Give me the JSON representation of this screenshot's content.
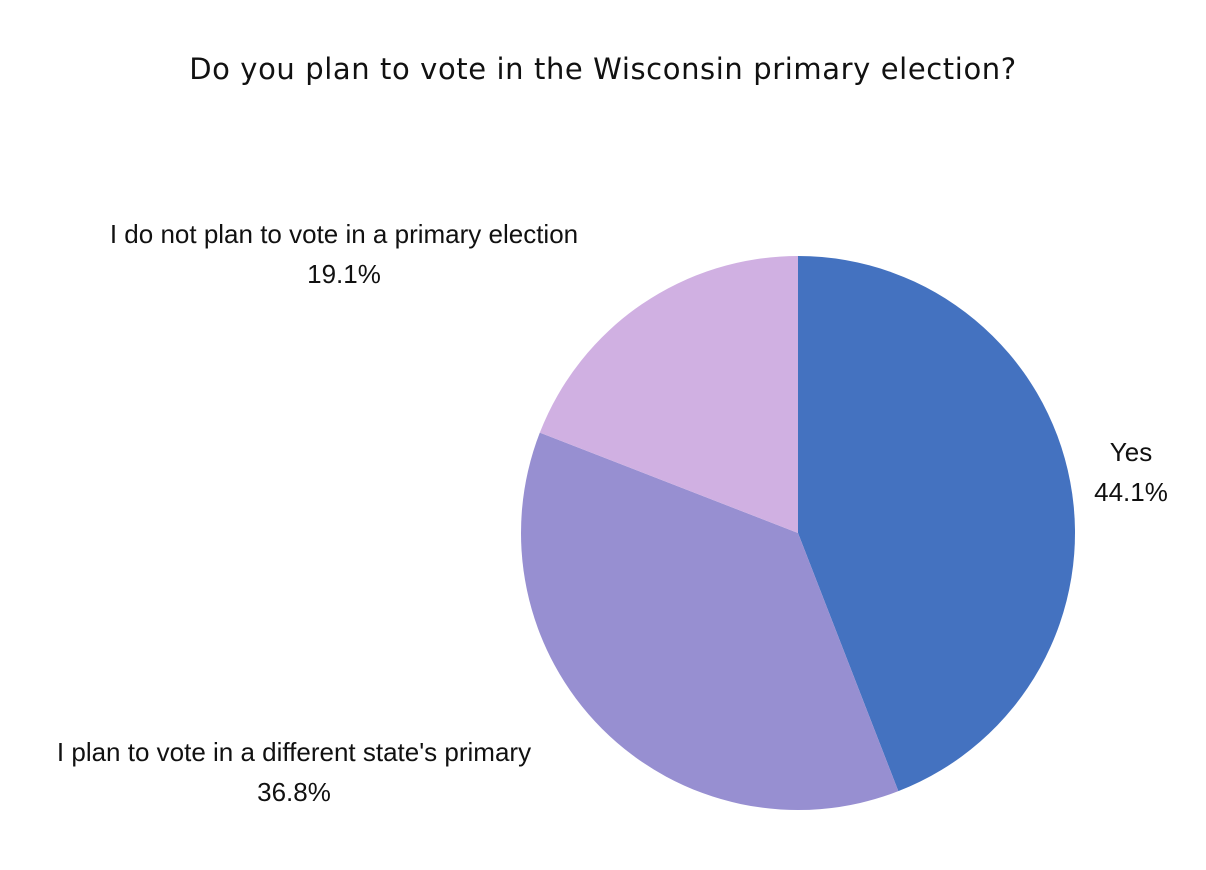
{
  "chart_data": {
    "type": "pie",
    "title": "Do you plan to vote in the Wisconsin primary election?",
    "slices": [
      {
        "label": "Yes",
        "value": 44.1,
        "value_label": "44.1%",
        "color": "#4472c0"
      },
      {
        "label": "I plan to vote in a different state's primary",
        "value": 36.8,
        "value_label": "36.8%",
        "color": "#978fd1"
      },
      {
        "label": "I do not plan to vote in a primary election",
        "value": 19.1,
        "value_label": "19.1%",
        "color": "#d0b0e2"
      }
    ],
    "start_angle": "12 o'clock",
    "direction": "clockwise",
    "legend": "none"
  }
}
